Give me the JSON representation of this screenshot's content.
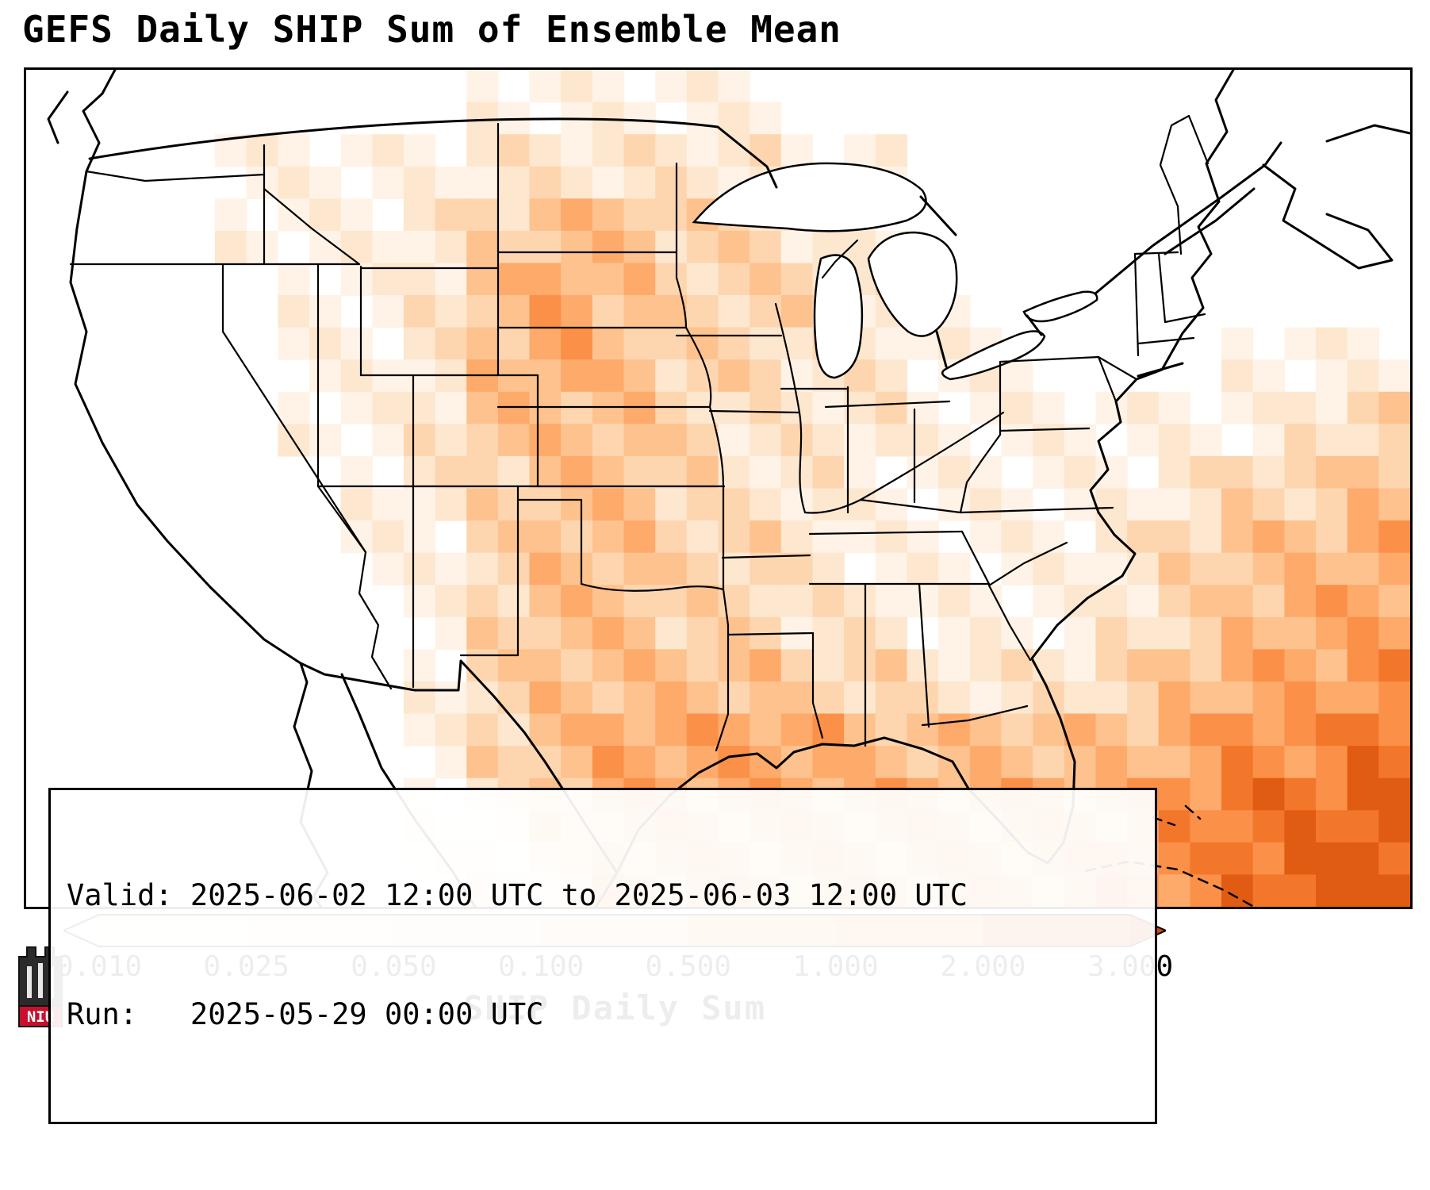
{
  "title": "GEFS Daily SHIP Sum of Ensemble Mean",
  "info_box": {
    "valid_line": "Valid: 2025-06-02 12:00 UTC to 2025-06-03 12:00 UTC",
    "run_line": "Run:   2025-05-29 00:00 UTC"
  },
  "colorbar": {
    "label": "SHIP Daily Sum",
    "tick_labels": [
      "0.010",
      "0.025",
      "0.050",
      "0.100",
      "0.500",
      "1.000",
      "2.000",
      "3.000"
    ],
    "segment_colors": [
      "#fef8f0",
      "#fdeedd",
      "#fde0c2",
      "#fdc69b",
      "#fda868",
      "#f8873c",
      "#e9651a"
    ],
    "under_color": "#ffffff",
    "over_color": "#d14a03"
  },
  "logo": {
    "text": "NIU",
    "accent_color": "#c8102e"
  },
  "chart_data": {
    "type": "heatmap",
    "title": "GEFS Daily SHIP Sum of Ensemble Mean",
    "units_label": "SHIP Daily Sum",
    "valid": "2025-06-02 12:00 UTC to 2025-06-03 12:00 UTC",
    "run": "2025-05-29 00:00 UTC",
    "bounds": [
      0.01,
      0.025,
      0.05,
      0.1,
      0.5,
      1.0,
      2.0,
      3.0
    ],
    "palette": [
      "#ffffff",
      "#fef3e6",
      "#fde7cf",
      "#fdd6b0",
      "#fdc28e",
      "#fdaa6a",
      "#fb9048",
      "#f2772b",
      "#e05c12"
    ],
    "grid_cols": 22,
    "grid_rows": 13,
    "grid": [
      [
        0,
        0,
        0,
        0,
        0,
        0,
        0,
        1,
        1,
        1,
        1,
        1,
        0,
        0,
        0,
        0,
        0,
        0,
        0,
        0,
        0,
        0
      ],
      [
        0,
        0,
        0,
        1,
        1,
        1,
        1,
        2,
        2,
        2,
        2,
        2,
        1,
        1,
        0,
        0,
        0,
        0,
        0,
        0,
        0,
        0
      ],
      [
        0,
        0,
        0,
        1,
        1,
        1,
        2,
        3,
        4,
        4,
        3,
        3,
        2,
        1,
        0,
        0,
        0,
        0,
        0,
        0,
        0,
        0
      ],
      [
        0,
        0,
        0,
        0,
        1,
        1,
        2,
        4,
        5,
        4,
        3,
        3,
        3,
        2,
        1,
        0,
        0,
        0,
        0,
        0,
        0,
        0
      ],
      [
        0,
        0,
        0,
        0,
        1,
        1,
        2,
        4,
        5,
        4,
        3,
        3,
        2,
        2,
        1,
        1,
        0,
        0,
        0,
        1,
        1,
        1
      ],
      [
        0,
        0,
        0,
        0,
        1,
        1,
        2,
        4,
        4,
        4,
        3,
        2,
        2,
        2,
        1,
        1,
        1,
        1,
        1,
        1,
        2,
        3
      ],
      [
        0,
        0,
        0,
        0,
        0,
        1,
        2,
        3,
        4,
        4,
        3,
        2,
        2,
        1,
        1,
        1,
        1,
        1,
        2,
        3,
        3,
        4
      ],
      [
        0,
        0,
        0,
        0,
        0,
        1,
        1,
        3,
        4,
        4,
        3,
        3,
        2,
        1,
        1,
        1,
        1,
        2,
        3,
        4,
        4,
        5
      ],
      [
        0,
        0,
        0,
        0,
        0,
        0,
        1,
        3,
        4,
        4,
        3,
        3,
        2,
        2,
        1,
        1,
        1,
        2,
        3,
        4,
        5,
        5
      ],
      [
        0,
        0,
        0,
        0,
        0,
        0,
        1,
        3,
        4,
        4,
        4,
        4,
        3,
        3,
        2,
        2,
        2,
        3,
        4,
        5,
        5,
        6
      ],
      [
        0,
        0,
        0,
        0,
        0,
        0,
        1,
        3,
        4,
        5,
        5,
        5,
        5,
        4,
        4,
        4,
        4,
        4,
        5,
        6,
        6,
        7
      ],
      [
        0,
        0,
        0,
        0,
        0,
        0,
        1,
        2,
        4,
        5,
        5,
        5,
        5,
        5,
        5,
        5,
        5,
        5,
        6,
        7,
        7,
        8
      ],
      [
        0,
        0,
        0,
        0,
        0,
        0,
        1,
        2,
        3,
        5,
        5,
        5,
        5,
        5,
        5,
        5,
        5,
        6,
        6,
        7,
        8,
        8
      ]
    ]
  }
}
